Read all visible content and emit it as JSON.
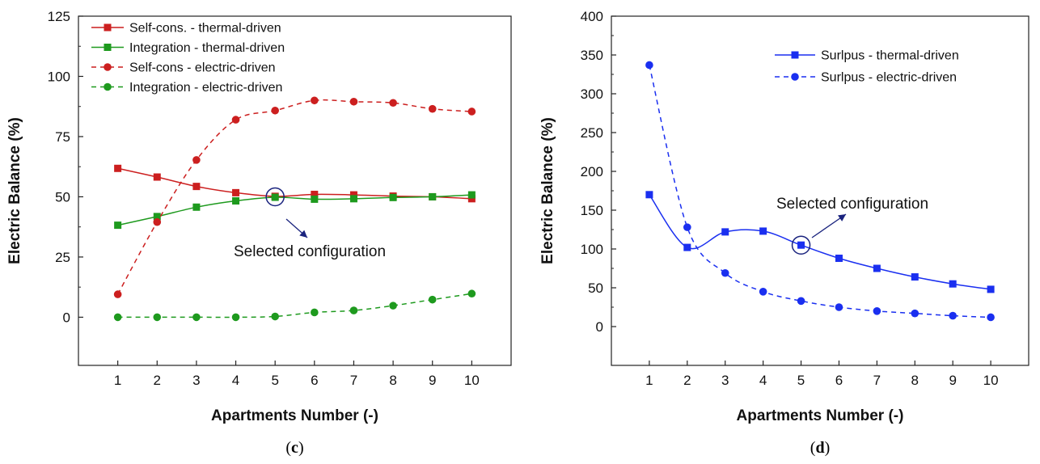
{
  "chart_data": [
    {
      "type": "line",
      "panel": "c",
      "caption_open": "(",
      "caption_letter": "c",
      "caption_close": ")",
      "xlabel": "Apartments Number (-)",
      "ylabel": "Electric Balance (%)",
      "x": [
        1,
        2,
        3,
        4,
        5,
        6,
        7,
        8,
        9,
        10
      ],
      "xticks": [
        "1",
        "2",
        "3",
        "4",
        "5",
        "6",
        "7",
        "8",
        "9",
        "10"
      ],
      "xlim": [
        0,
        11
      ],
      "ylim": [
        -20,
        125
      ],
      "yticks": [
        0,
        25,
        50,
        75,
        100,
        125
      ],
      "legend_position": "top-left",
      "series": [
        {
          "name": "Self-cons.  - thermal-driven",
          "color": "#cc1f1f",
          "marker": "square",
          "dash": "solid",
          "values": [
            61.8,
            58.2,
            54.3,
            51.7,
            50.2,
            51.0,
            50.8,
            50.3,
            50.0,
            49.2
          ]
        },
        {
          "name": "Integration - thermal-driven",
          "color": "#1e9a1e",
          "marker": "square",
          "dash": "solid",
          "values": [
            38.2,
            41.8,
            45.7,
            48.3,
            49.8,
            49.0,
            49.2,
            49.7,
            50.0,
            50.8
          ]
        },
        {
          "name": "Self-cons   - electric-driven",
          "color": "#cc1f1f",
          "marker": "circle",
          "dash": "dashed",
          "values": [
            9.5,
            39.5,
            65.3,
            82.0,
            85.8,
            90.0,
            89.5,
            89.0,
            86.5,
            85.4
          ]
        },
        {
          "name": "Integration - electric-driven",
          "color": "#1e9a1e",
          "marker": "circle",
          "dash": "dashed",
          "values": [
            0.0,
            0.0,
            0.0,
            0.0,
            0.3,
            2.0,
            2.8,
            4.8,
            7.3,
            9.8
          ]
        }
      ],
      "annotation": {
        "text": "Selected configuration",
        "x": 5,
        "y": 50
      }
    },
    {
      "type": "line",
      "panel": "d",
      "caption_open": "(",
      "caption_letter": "d",
      "caption_close": ")",
      "xlabel": "Apartments Number (-)",
      "ylabel": "Electric Balance (%)",
      "x": [
        1,
        2,
        3,
        4,
        5,
        6,
        7,
        8,
        9,
        10
      ],
      "xticks": [
        "1",
        "2",
        "3",
        "4",
        "5",
        "6",
        "7",
        "8",
        "9",
        "10"
      ],
      "xlim": [
        0,
        11
      ],
      "ylim": [
        -50,
        400
      ],
      "yticks": [
        0,
        50,
        100,
        150,
        200,
        250,
        300,
        350,
        400
      ],
      "legend_position": "top-right",
      "series": [
        {
          "name": "Surlpus - thermal-driven",
          "color": "#1a2ff0",
          "marker": "square",
          "dash": "solid",
          "values": [
            170,
            102,
            122,
            123,
            105,
            88,
            75,
            64,
            55,
            48
          ]
        },
        {
          "name": "Surlpus - electric-driven",
          "color": "#1a2ff0",
          "marker": "circle",
          "dash": "dashed",
          "values": [
            337,
            128,
            69,
            45,
            33,
            25,
            20,
            17,
            14,
            12
          ]
        }
      ],
      "annotation": {
        "text": "Selected configuration",
        "x": 5,
        "y": 105
      }
    }
  ]
}
